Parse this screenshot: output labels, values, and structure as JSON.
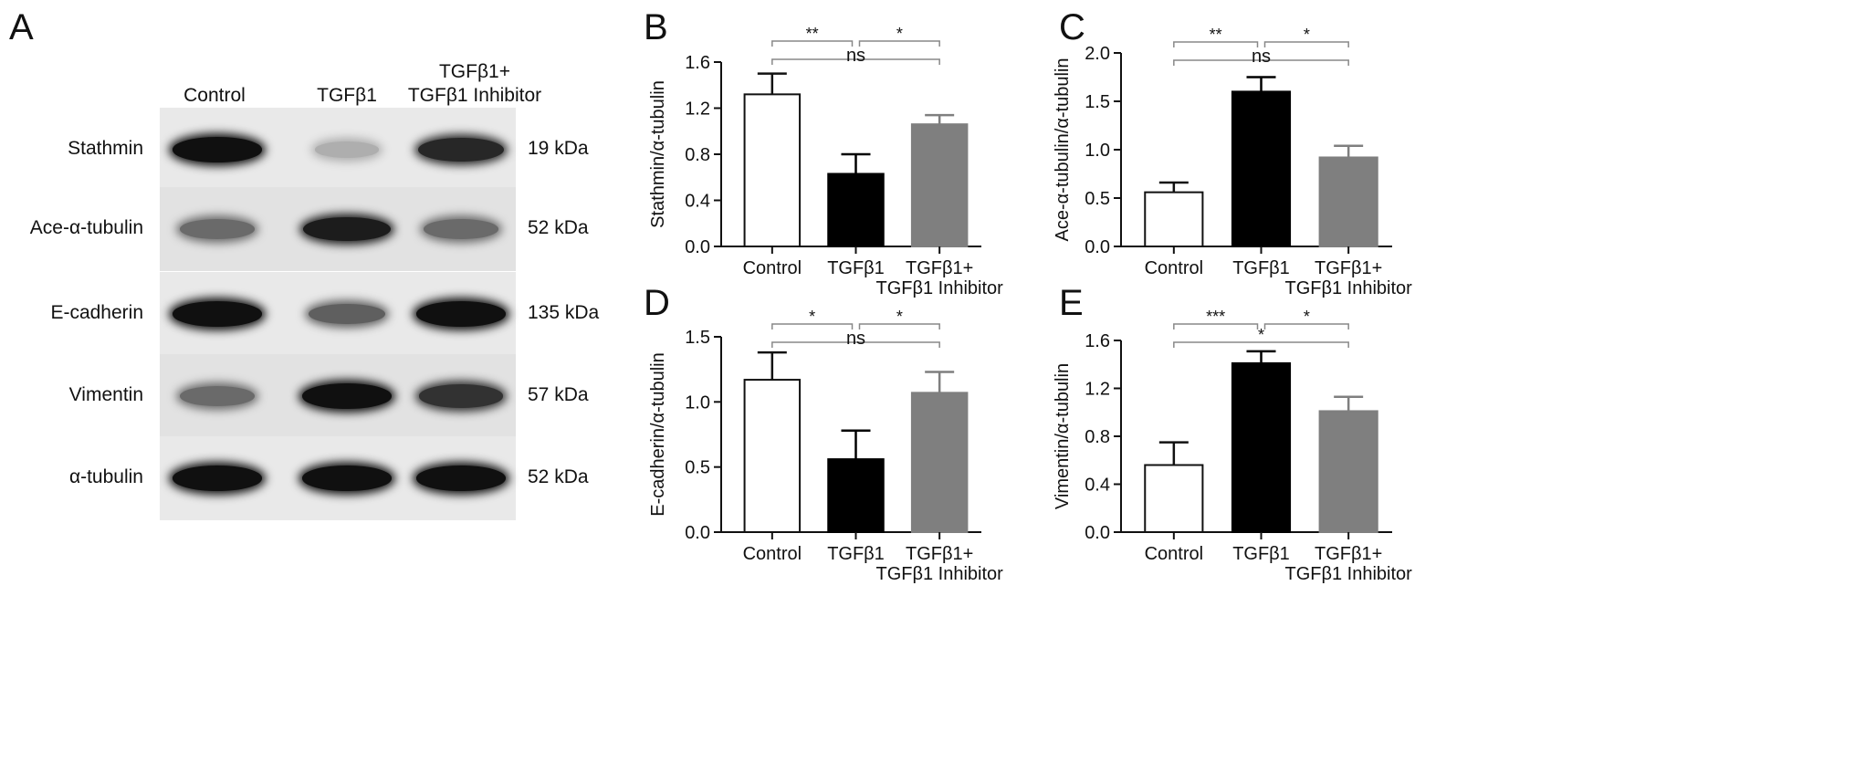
{
  "panels": {
    "a": "A",
    "b": "B",
    "c": "C",
    "d": "D",
    "e": "E"
  },
  "blot": {
    "lanes": [
      "Control",
      "TGFβ1",
      "TGFβ1+\nTGFβ1 Inhibitor"
    ],
    "rows": [
      {
        "label": "Stathmin",
        "kda": "19 kDa",
        "intensity": [
          0.95,
          0.25,
          0.85
        ]
      },
      {
        "label": "Ace-α-tubulin",
        "kda": "52 kDa",
        "intensity": [
          0.55,
          0.9,
          0.55
        ]
      },
      {
        "label": "E-cadherin",
        "kda": "135 kDa",
        "intensity": [
          0.95,
          0.6,
          0.95
        ]
      },
      {
        "label": "Vimentin",
        "kda": "57 kDa",
        "intensity": [
          0.55,
          0.95,
          0.8
        ]
      },
      {
        "label": "α-tubulin",
        "kda": "52 kDa",
        "intensity": [
          0.95,
          0.95,
          0.95
        ]
      }
    ]
  },
  "chart_data": [
    {
      "panel": "B",
      "type": "bar",
      "categories": [
        "Control",
        "TGFβ1",
        "TGFβ1+\nTGFβ1 Inhibitor"
      ],
      "values": [
        1.32,
        0.63,
        1.06
      ],
      "errors": [
        0.18,
        0.17,
        0.08
      ],
      "ylabel": "Stathmin/α-tubulin",
      "ylim": [
        0,
        1.6
      ],
      "ticks": [
        "0.0",
        "0.4",
        "0.8",
        "1.2",
        "1.6"
      ],
      "colors": [
        "#ffffff",
        "#000000",
        "#7f7f7f"
      ],
      "significance": [
        {
          "from": 0,
          "to": 1,
          "label": "**"
        },
        {
          "from": 1,
          "to": 2,
          "label": "*"
        },
        {
          "from": 0,
          "to": 2,
          "label": "ns"
        }
      ]
    },
    {
      "panel": "C",
      "type": "bar",
      "categories": [
        "Control",
        "TGFβ1",
        "TGFβ1+\nTGFβ1 Inhibitor"
      ],
      "values": [
        0.56,
        1.6,
        0.92
      ],
      "errors": [
        0.1,
        0.15,
        0.12
      ],
      "ylabel": "Ace-α-tubulin/α-tubulin",
      "ylim": [
        0,
        2.0
      ],
      "ticks": [
        "0.0",
        "0.5",
        "1.0",
        "1.5",
        "2.0"
      ],
      "colors": [
        "#ffffff",
        "#000000",
        "#7f7f7f"
      ],
      "significance": [
        {
          "from": 0,
          "to": 1,
          "label": "**"
        },
        {
          "from": 1,
          "to": 2,
          "label": "*"
        },
        {
          "from": 0,
          "to": 2,
          "label": "ns"
        }
      ]
    },
    {
      "panel": "D",
      "type": "bar",
      "categories": [
        "Control",
        "TGFβ1",
        "TGFβ1+\nTGFβ1 Inhibitor"
      ],
      "values": [
        1.17,
        0.56,
        1.07
      ],
      "errors": [
        0.21,
        0.22,
        0.16
      ],
      "ylabel": "E-cadherin/α-tubulin",
      "ylim": [
        0,
        1.5
      ],
      "ticks": [
        "0.0",
        "0.5",
        "1.0",
        "1.5"
      ],
      "colors": [
        "#ffffff",
        "#000000",
        "#7f7f7f"
      ],
      "significance": [
        {
          "from": 0,
          "to": 1,
          "label": "*"
        },
        {
          "from": 1,
          "to": 2,
          "label": "*"
        },
        {
          "from": 0,
          "to": 2,
          "label": "ns"
        }
      ]
    },
    {
      "panel": "E",
      "type": "bar",
      "categories": [
        "Control",
        "TGFβ1",
        "TGFβ1+\nTGFβ1 Inhibitor"
      ],
      "values": [
        0.56,
        1.41,
        1.01
      ],
      "errors": [
        0.19,
        0.1,
        0.12
      ],
      "ylabel": "Vimentin/α-tubulin",
      "ylim": [
        0,
        1.6
      ],
      "ticks": [
        "0.0",
        "0.4",
        "0.8",
        "1.2",
        "1.6"
      ],
      "colors": [
        "#ffffff",
        "#000000",
        "#7f7f7f"
      ],
      "significance": [
        {
          "from": 0,
          "to": 1,
          "label": "***"
        },
        {
          "from": 1,
          "to": 2,
          "label": "*"
        },
        {
          "from": 0,
          "to": 2,
          "label": "*"
        }
      ]
    }
  ]
}
